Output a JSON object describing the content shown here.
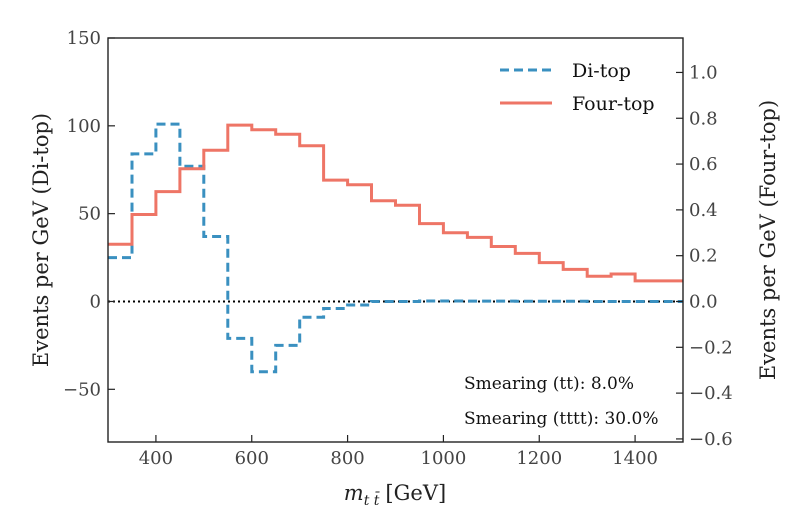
{
  "chart_data": {
    "type": "line",
    "step": true,
    "x_edges": [
      300,
      350,
      400,
      450,
      500,
      550,
      600,
      650,
      700,
      750,
      800,
      850,
      900,
      950,
      1000,
      1050,
      1100,
      1150,
      1200,
      1250,
      1300,
      1350,
      1400,
      1450,
      1500
    ],
    "series": [
      {
        "name": "Di-top",
        "axis": "left",
        "style": "dashed",
        "color": "#3a90c0",
        "values": [
          25,
          84,
          101,
          77,
          37,
          -21,
          -40,
          -25,
          -9,
          -4,
          -2,
          0,
          0,
          0.3,
          0.3,
          0.2,
          0.2,
          0.1,
          0.1,
          0.1,
          0,
          0,
          0,
          0
        ]
      },
      {
        "name": "Four-top",
        "axis": "right",
        "style": "solid",
        "color": "#ee7566",
        "values": [
          0.25,
          0.38,
          0.48,
          0.58,
          0.66,
          0.77,
          0.75,
          0.73,
          0.68,
          0.53,
          0.51,
          0.44,
          0.42,
          0.34,
          0.3,
          0.28,
          0.24,
          0.21,
          0.17,
          0.14,
          0.11,
          0.12,
          0.09,
          0.09
        ]
      }
    ],
    "xlabel_main": "m",
    "xlabel_sub": "t t̄",
    "xlabel_unit": "[GeV]",
    "ylabel_left": "Events per GeV (Di-top)",
    "ylabel_right": "Events per GeV (Four-top)",
    "xlim": [
      300,
      1500
    ],
    "ylim_left": [
      -80,
      150
    ],
    "ylim_right": [
      -0.6134,
      1.1504
    ],
    "x_ticks": [
      400,
      600,
      800,
      1000,
      1200,
      1400
    ],
    "x_tick_labels": [
      "400",
      "600",
      "800",
      "1000",
      "1200",
      "1400"
    ],
    "y_left_ticks": [
      -50,
      0,
      50,
      100,
      150
    ],
    "y_left_tick_labels": [
      "−50",
      "0",
      "50",
      "100",
      "150"
    ],
    "y_right_ticks": [
      -0.6,
      -0.4,
      -0.2,
      0.0,
      0.2,
      0.4,
      0.6,
      0.8,
      1.0
    ],
    "y_right_tick_labels": [
      "−0.6",
      "−0.4",
      "−0.2",
      "0.0",
      "0.2",
      "0.4",
      "0.6",
      "0.8",
      "1.0"
    ],
    "zero_line": {
      "y": 0,
      "style": "dotted"
    },
    "legend": {
      "position": "top-right",
      "entries": [
        "Di-top",
        "Four-top"
      ]
    },
    "annotations": [
      "Smearing (tt): 8.0%",
      "Smearing (tttt): 30.0%"
    ],
    "colors": {
      "left_axis": "#3a90c0",
      "right_axis": "#ee7566",
      "axis": "#222222"
    }
  }
}
